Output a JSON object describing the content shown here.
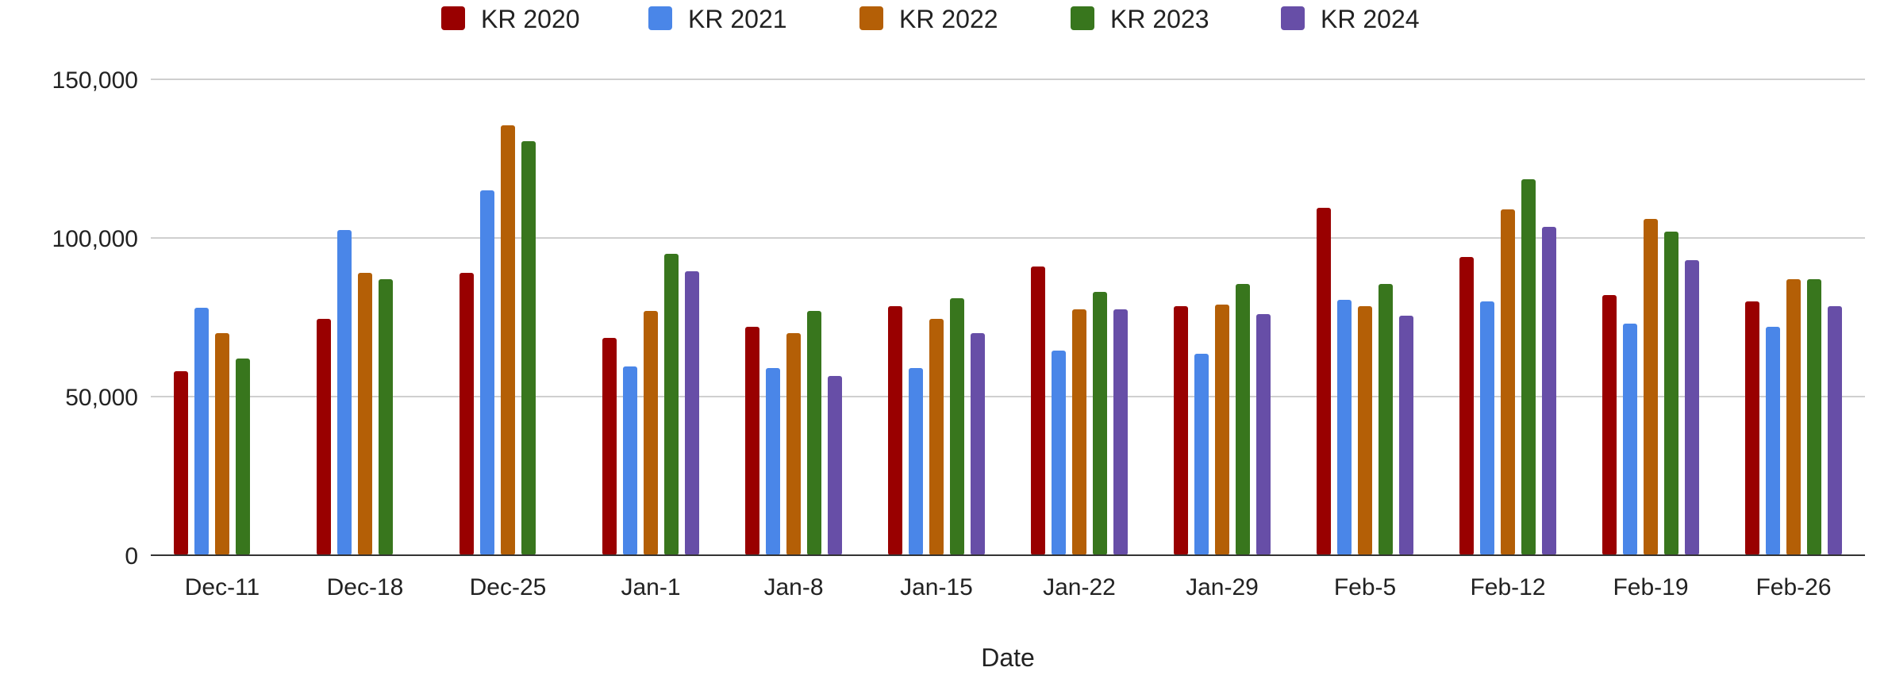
{
  "chart_data": {
    "type": "bar",
    "title": "",
    "xlabel": "Date",
    "ylabel": "",
    "ylim": [
      0,
      150000
    ],
    "yticks": [
      0,
      50000,
      100000,
      150000
    ],
    "ytick_labels": [
      "0",
      "50,000",
      "100,000",
      "150,000"
    ],
    "grid": true,
    "legend_position": "top-center",
    "categories": [
      "Dec-11",
      "Dec-18",
      "Dec-25",
      "Jan-1",
      "Jan-8",
      "Jan-15",
      "Jan-22",
      "Jan-29",
      "Feb-5",
      "Feb-12",
      "Feb-19",
      "Feb-26"
    ],
    "series": [
      {
        "name": "KR 2020",
        "color": "#990000",
        "values": [
          58000,
          74500,
          89000,
          68500,
          72000,
          78500,
          91000,
          78500,
          109500,
          94000,
          82000,
          80000
        ]
      },
      {
        "name": "KR 2021",
        "color": "#4a86e8",
        "values": [
          78000,
          102500,
          115000,
          59500,
          59000,
          59000,
          64500,
          63500,
          80500,
          80000,
          73000,
          72000
        ]
      },
      {
        "name": "KR 2022",
        "color": "#b45f06",
        "values": [
          70000,
          89000,
          135500,
          77000,
          70000,
          74500,
          77500,
          79000,
          78500,
          109000,
          106000,
          87000
        ]
      },
      {
        "name": "KR 2023",
        "color": "#38761d",
        "values": [
          62000,
          87000,
          130500,
          95000,
          77000,
          81000,
          83000,
          85500,
          85500,
          118500,
          102000,
          87000
        ]
      },
      {
        "name": "KR 2024",
        "color": "#674ea7",
        "values": [
          null,
          null,
          null,
          89500,
          56500,
          70000,
          77500,
          76000,
          75500,
          103500,
          93000,
          78500
        ]
      }
    ]
  }
}
